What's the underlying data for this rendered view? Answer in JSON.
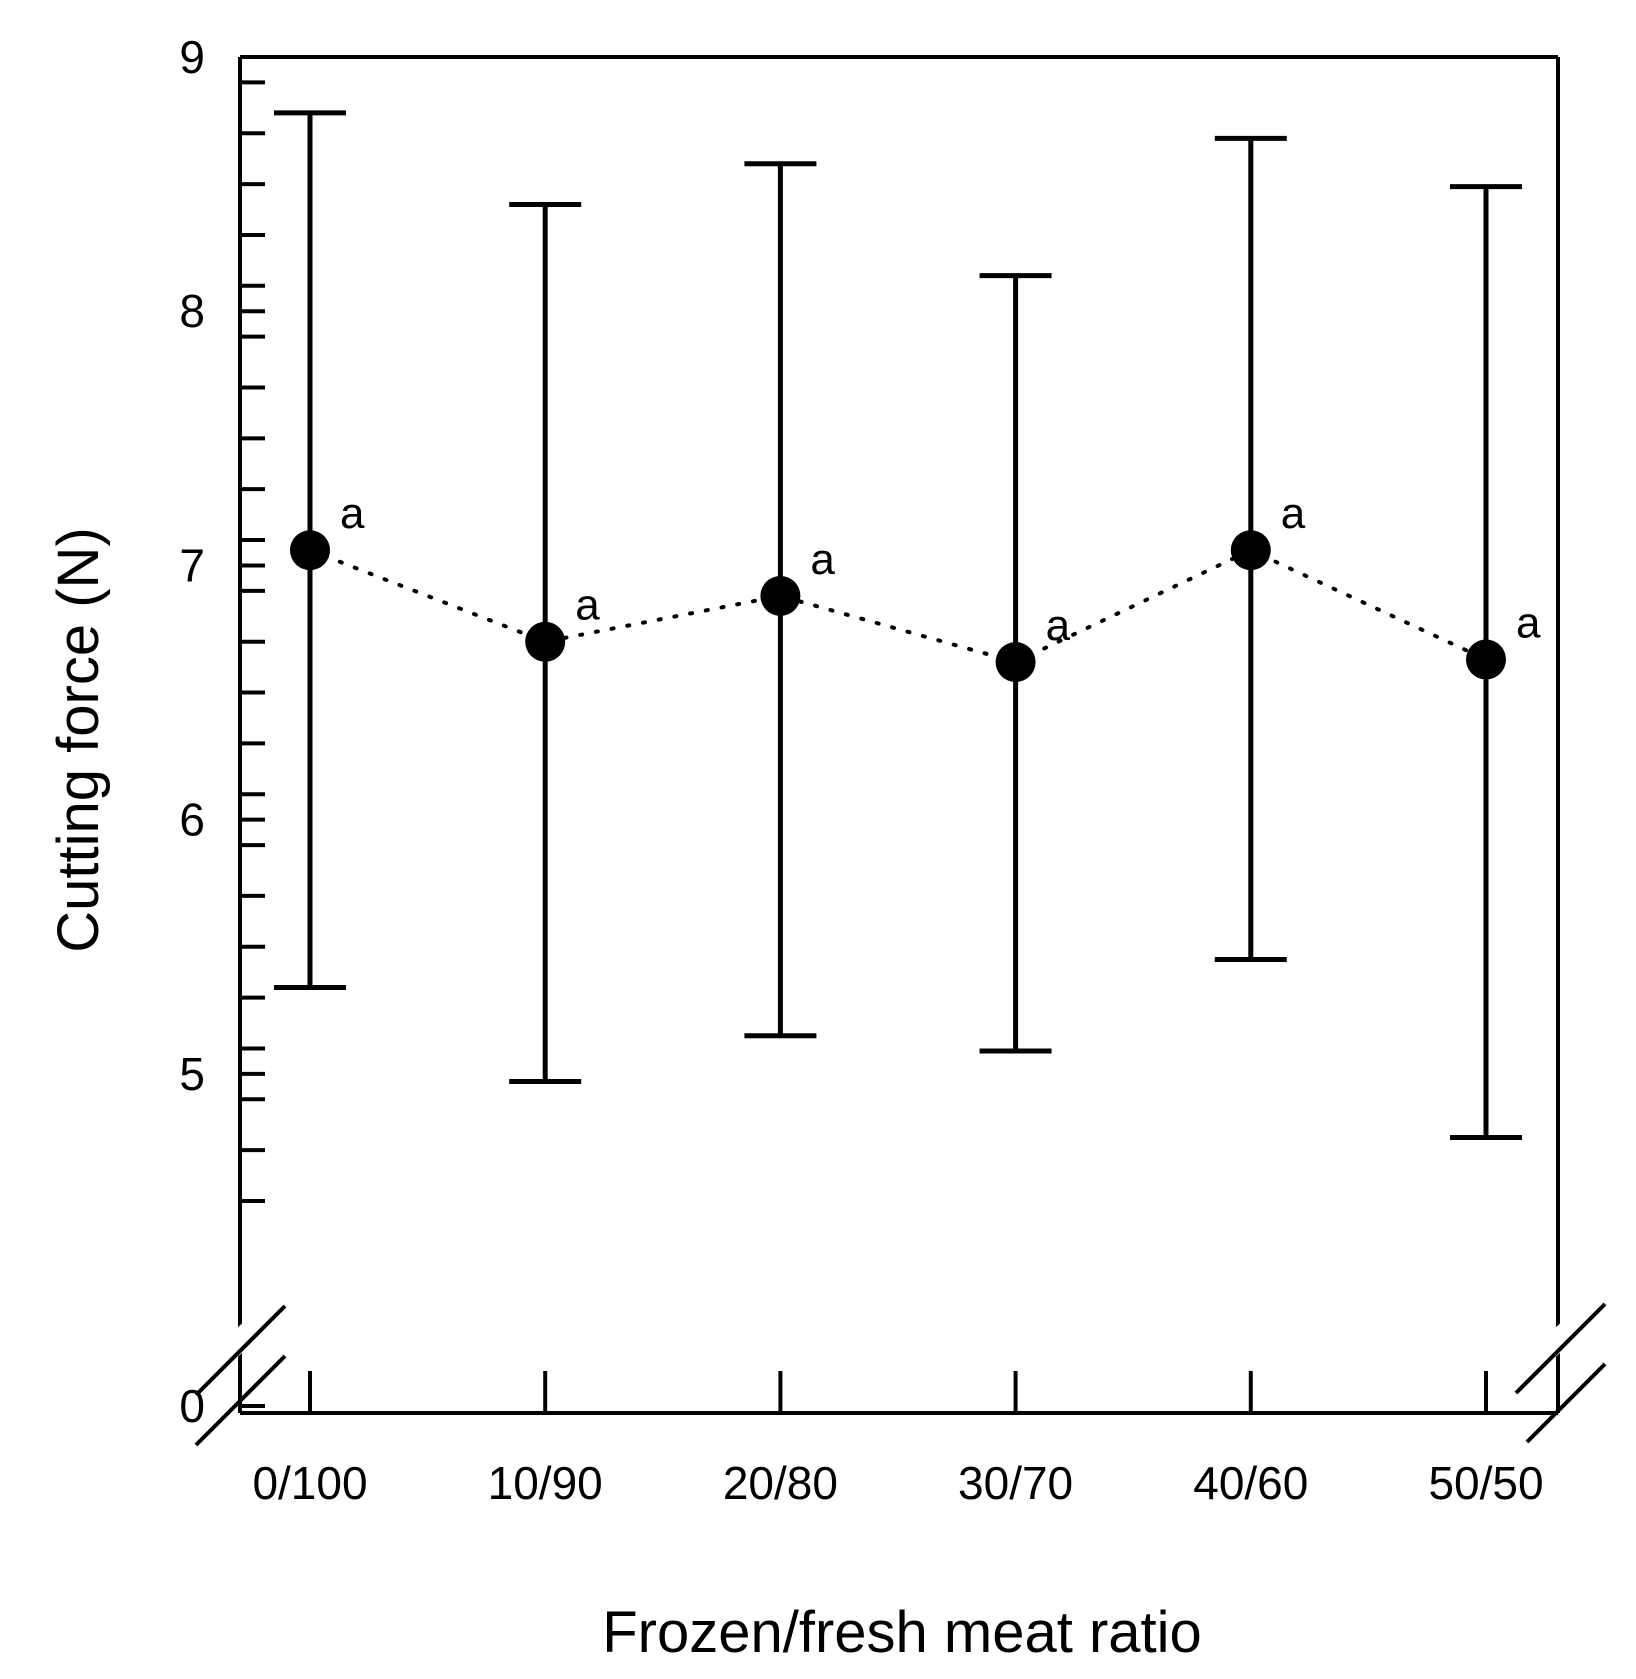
{
  "chart_data": {
    "type": "scatter",
    "title": "",
    "xlabel": "Frozen/fresh meat ratio",
    "ylabel": "Cutting force (N)",
    "categories": [
      "0/100",
      "10/90",
      "20/80",
      "30/70",
      "40/60",
      "50/50"
    ],
    "series": [
      {
        "values": [
          7.06,
          6.7,
          6.88,
          6.62,
          7.06,
          6.63
        ],
        "err_low": [
          5.34,
          4.97,
          5.15,
          5.09,
          5.45,
          4.75
        ],
        "err_high": [
          8.78,
          8.42,
          8.58,
          8.14,
          8.68,
          8.49
        ],
        "labels": [
          "a",
          "a",
          "a",
          "a",
          "a",
          "a"
        ],
        "line_style": "dotted",
        "marker": "filled-circle",
        "color": "#000000"
      }
    ],
    "yticks": [
      "0",
      "5",
      "6",
      "7",
      "8",
      "9"
    ],
    "ylim": [
      4.5,
      9
    ],
    "y_axis_break": true,
    "y_minor_step": 0.2,
    "grid": false,
    "legend": "none"
  }
}
